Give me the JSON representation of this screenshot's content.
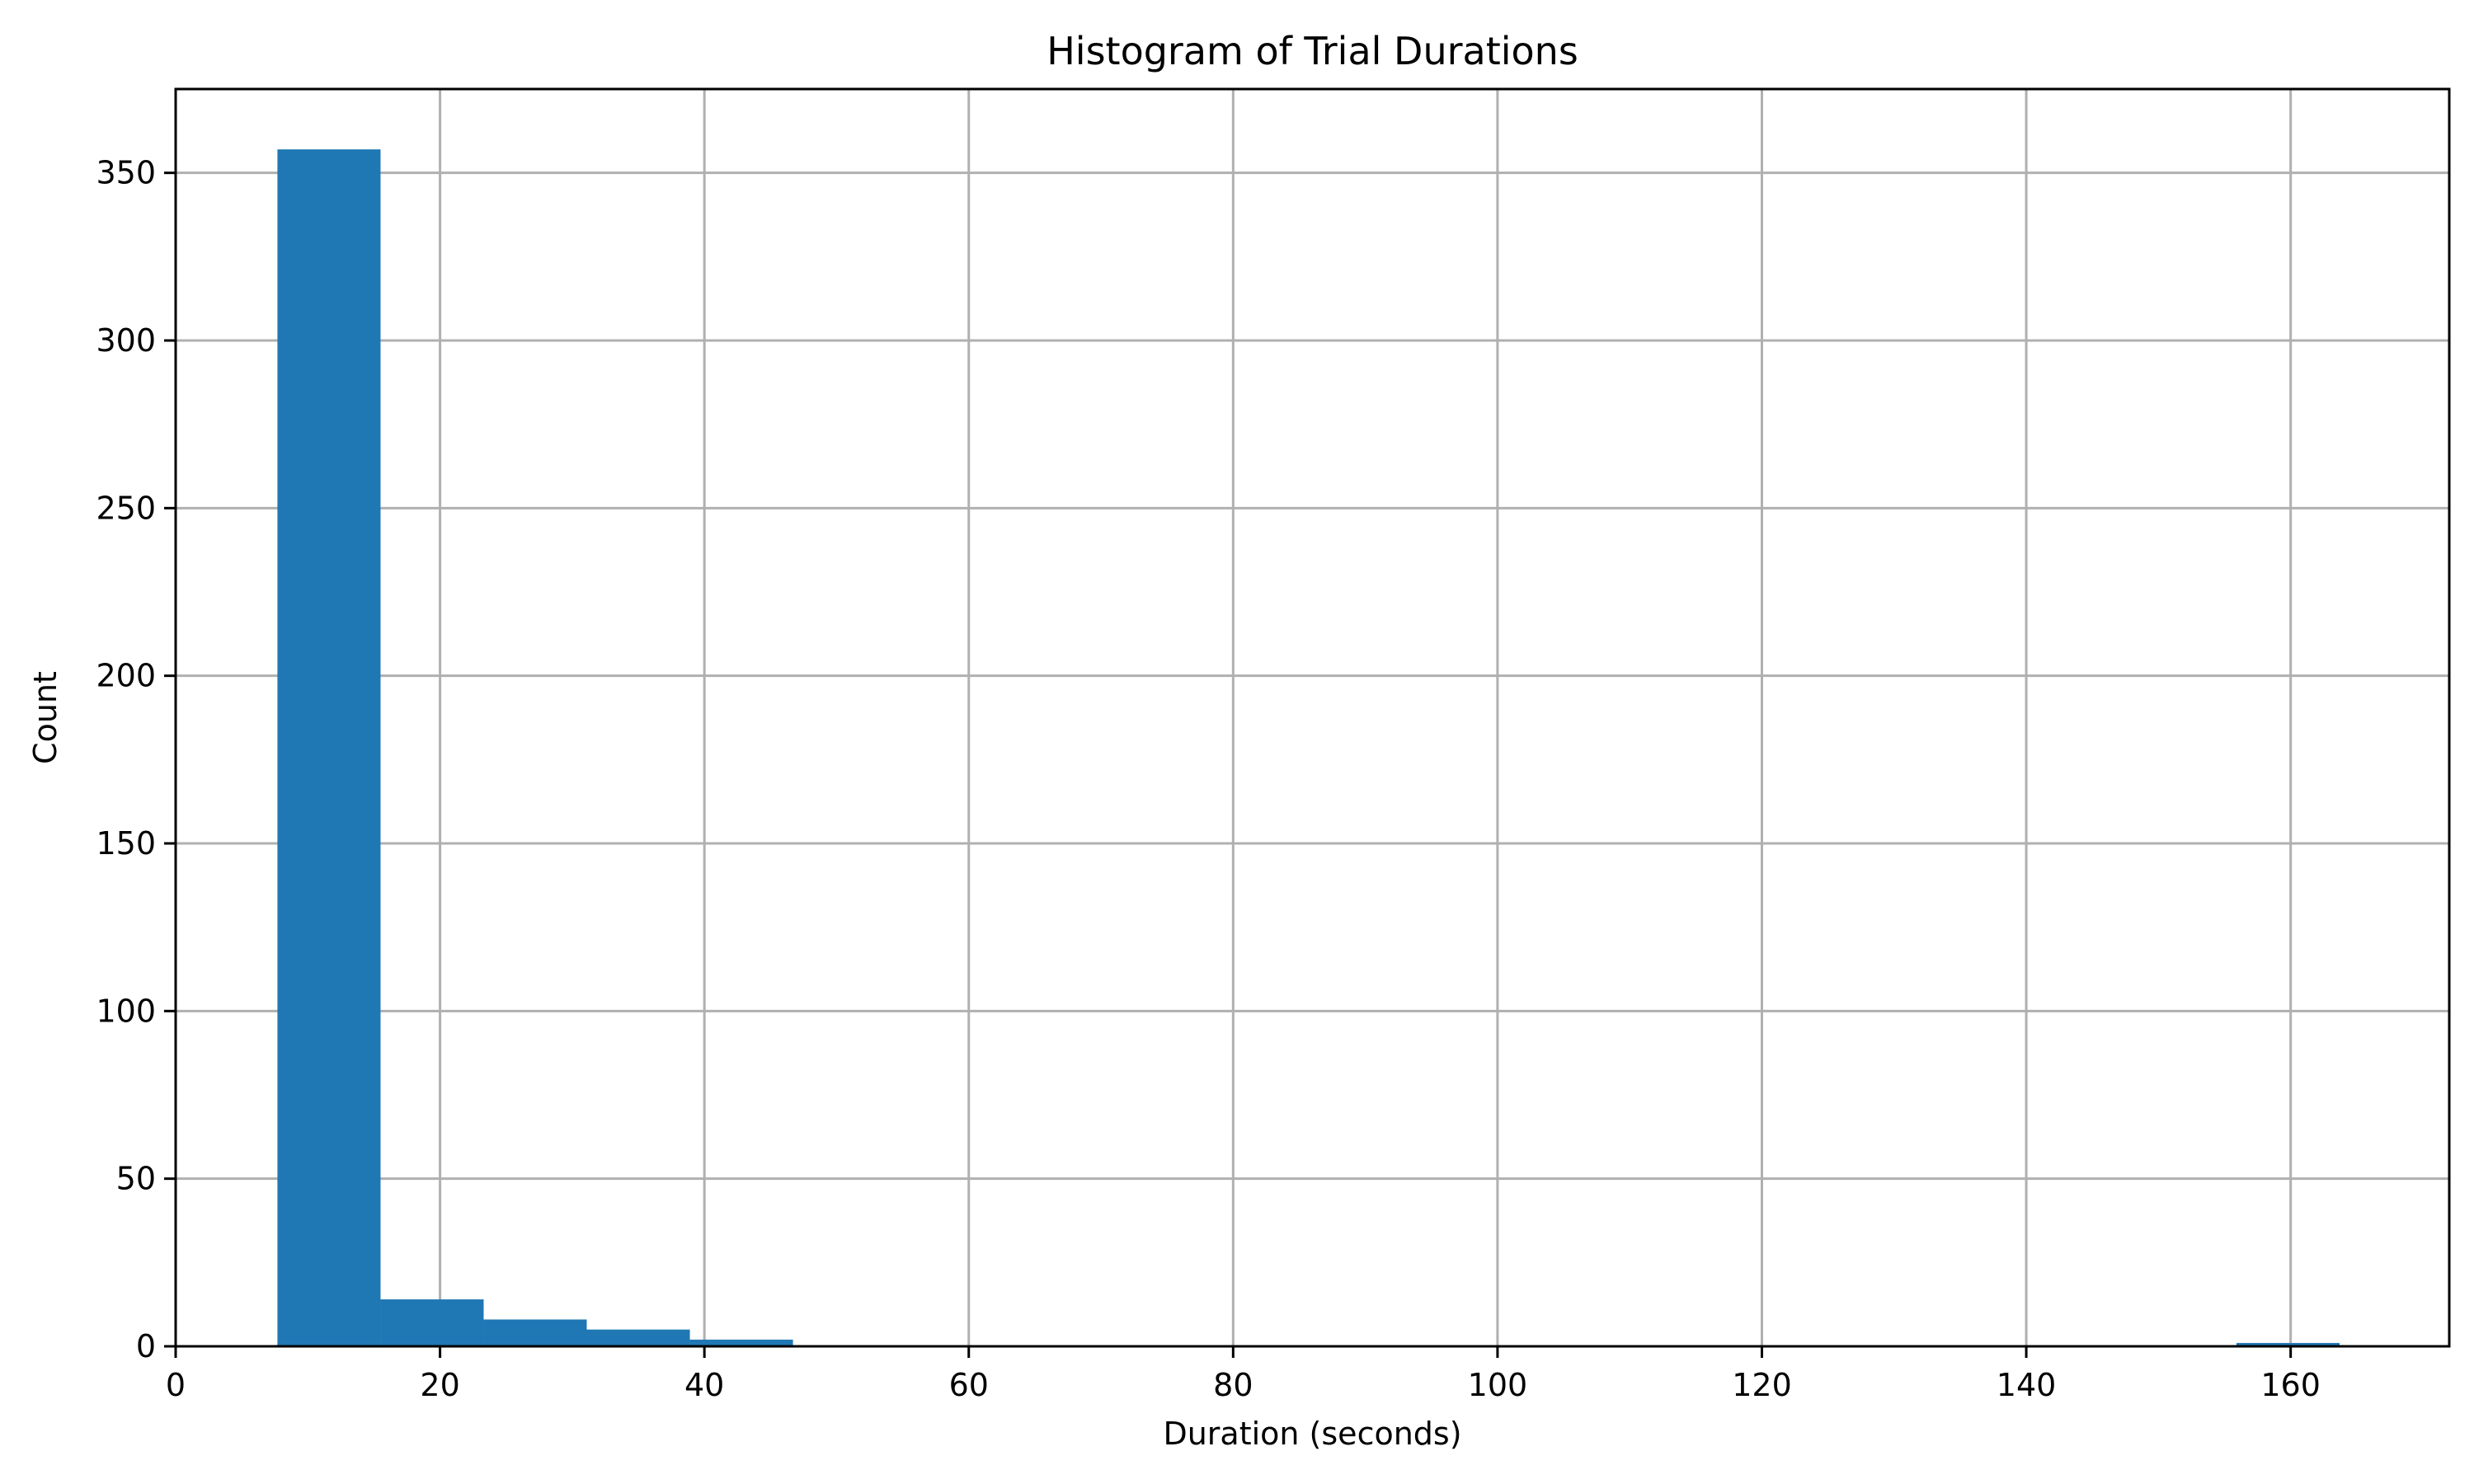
{
  "chart_data": {
    "type": "bar",
    "title": "Histogram of Trial Durations",
    "xlabel": "Duration (seconds)",
    "ylabel": "Count",
    "xlim": [
      0,
      172
    ],
    "ylim": [
      0,
      375
    ],
    "xticks": [
      0,
      20,
      40,
      60,
      80,
      100,
      120,
      140,
      160
    ],
    "yticks": [
      0,
      50,
      100,
      150,
      200,
      250,
      300,
      350
    ],
    "grid": true,
    "bar_color": "#1f77b4",
    "bins": [
      {
        "x0": 7.7,
        "x1": 15.5,
        "count": 357
      },
      {
        "x0": 15.5,
        "x1": 23.3,
        "count": 14
      },
      {
        "x0": 23.3,
        "x1": 31.1,
        "count": 8
      },
      {
        "x0": 31.1,
        "x1": 38.9,
        "count": 5
      },
      {
        "x0": 38.9,
        "x1": 46.7,
        "count": 2
      },
      {
        "x0": 46.7,
        "x1": 54.5,
        "count": 0
      },
      {
        "x0": 54.5,
        "x1": 62.3,
        "count": 0
      },
      {
        "x0": 62.3,
        "x1": 70.1,
        "count": 0
      },
      {
        "x0": 70.1,
        "x1": 77.9,
        "count": 0
      },
      {
        "x0": 77.9,
        "x1": 85.7,
        "count": 0
      },
      {
        "x0": 85.7,
        "x1": 93.5,
        "count": 0
      },
      {
        "x0": 93.5,
        "x1": 101.3,
        "count": 0
      },
      {
        "x0": 101.3,
        "x1": 109.1,
        "count": 0
      },
      {
        "x0": 109.1,
        "x1": 116.9,
        "count": 0
      },
      {
        "x0": 116.9,
        "x1": 124.7,
        "count": 0
      },
      {
        "x0": 124.7,
        "x1": 132.5,
        "count": 0
      },
      {
        "x0": 132.5,
        "x1": 140.3,
        "count": 0
      },
      {
        "x0": 140.3,
        "x1": 148.1,
        "count": 0
      },
      {
        "x0": 148.1,
        "x1": 155.9,
        "count": 0
      },
      {
        "x0": 155.9,
        "x1": 163.7,
        "count": 1
      }
    ]
  }
}
